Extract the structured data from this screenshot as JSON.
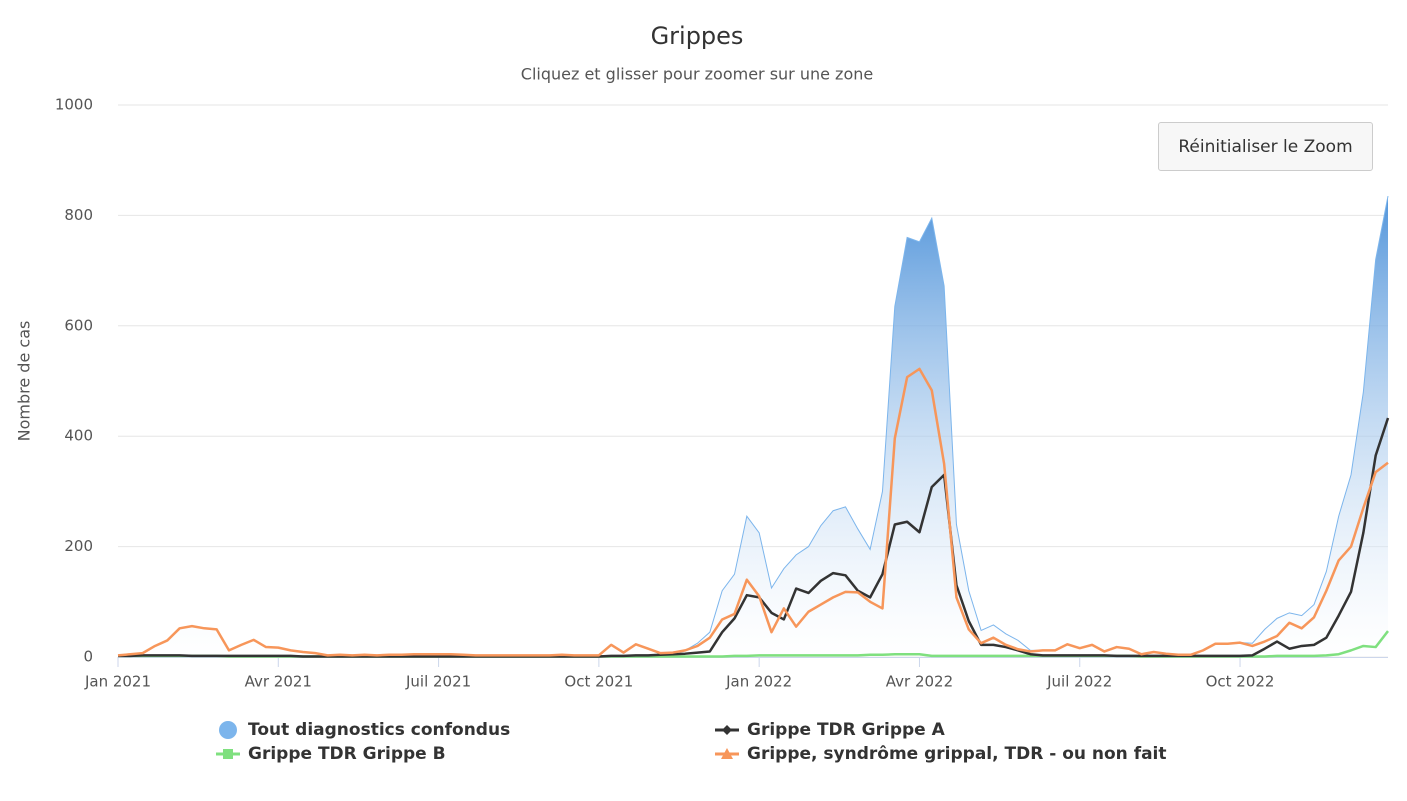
{
  "chart_data": {
    "type": "line",
    "title": "Grippes",
    "subtitle": "Cliquez et glisser pour zoomer sur une zone",
    "y_label": "Nombre de cas",
    "reset_zoom": "Réinitialiser le Zoom",
    "categories": [
      "Jan 2021",
      null,
      null,
      null,
      null,
      null,
      null,
      null,
      null,
      null,
      null,
      null,
      null,
      "Avr 2021",
      null,
      null,
      null,
      null,
      null,
      null,
      null,
      null,
      null,
      null,
      null,
      null,
      "Juil 2021",
      null,
      null,
      null,
      null,
      null,
      null,
      null,
      null,
      null,
      null,
      null,
      null,
      "Oct 2021",
      null,
      null,
      null,
      null,
      null,
      null,
      null,
      null,
      null,
      null,
      null,
      null,
      "Jan 2022",
      null,
      null,
      null,
      null,
      null,
      null,
      null,
      null,
      null,
      null,
      null,
      null,
      "Avr 2022",
      null,
      null,
      null,
      null,
      null,
      null,
      null,
      null,
      null,
      null,
      null,
      null,
      "Juil 2022",
      null,
      null,
      null,
      null,
      null,
      null,
      null,
      null,
      null,
      null,
      null,
      null,
      "Oct 2022",
      null,
      null,
      null,
      null,
      null,
      null,
      null,
      null,
      null,
      null,
      null,
      null
    ],
    "series": [
      {
        "name": "Tout diagnostics confondus",
        "color": "#7cb5ec",
        "area": true,
        "marker": "circle",
        "values": [
          3,
          5,
          7,
          20,
          30,
          52,
          56,
          52,
          50,
          12,
          22,
          31,
          18,
          17,
          12,
          9,
          7,
          3,
          4,
          3,
          4,
          3,
          4,
          4,
          5,
          5,
          5,
          5,
          4,
          3,
          3,
          3,
          3,
          3,
          3,
          3,
          4,
          3,
          3,
          3,
          22,
          8,
          23,
          15,
          7,
          8,
          12,
          25,
          45,
          120,
          150,
          255,
          225,
          125,
          160,
          185,
          200,
          238,
          265,
          272,
          232,
          195,
          300,
          635,
          760,
          752,
          795,
          672,
          240,
          120,
          48,
          58,
          42,
          30,
          12,
          12,
          12,
          23,
          16,
          22,
          10,
          18,
          15,
          5,
          9,
          6,
          4,
          4,
          12,
          24,
          24,
          26,
          25,
          50,
          70,
          80,
          75,
          95,
          155,
          255,
          330,
          480,
          720,
          835
        ]
      },
      {
        "name": "Grippe TDR Grippe A",
        "color": "#333333",
        "marker": "diamond",
        "values": [
          2,
          2,
          3,
          3,
          3,
          3,
          2,
          2,
          2,
          2,
          2,
          2,
          2,
          2,
          2,
          1,
          1,
          1,
          1,
          1,
          1,
          1,
          1,
          1,
          1,
          1,
          1,
          1,
          1,
          1,
          1,
          1,
          1,
          1,
          1,
          1,
          1,
          1,
          1,
          1,
          2,
          2,
          3,
          3,
          4,
          5,
          6,
          8,
          10,
          45,
          70,
          112,
          108,
          80,
          68,
          124,
          116,
          138,
          152,
          148,
          120,
          108,
          150,
          240,
          245,
          226,
          308,
          330,
          130,
          65,
          22,
          22,
          18,
          12,
          5,
          3,
          3,
          3,
          3,
          3,
          3,
          2,
          2,
          2,
          2,
          2,
          2,
          2,
          2,
          2,
          2,
          2,
          3,
          15,
          28,
          15,
          20,
          22,
          35,
          75,
          118,
          225,
          365,
          433
        ]
      },
      {
        "name": "Grippe TDR Grippe B",
        "color": "#7fe07f",
        "marker": "square",
        "values": [
          2,
          2,
          2,
          2,
          2,
          2,
          2,
          2,
          2,
          1,
          1,
          1,
          1,
          1,
          1,
          1,
          1,
          1,
          1,
          1,
          1,
          1,
          1,
          1,
          1,
          1,
          1,
          1,
          1,
          1,
          1,
          1,
          1,
          1,
          1,
          1,
          1,
          1,
          1,
          1,
          1,
          1,
          1,
          1,
          1,
          1,
          1,
          1,
          1,
          1,
          2,
          2,
          3,
          3,
          3,
          3,
          3,
          3,
          3,
          3,
          3,
          4,
          4,
          5,
          5,
          5,
          2,
          2,
          2,
          2,
          2,
          2,
          2,
          2,
          2,
          2,
          2,
          2,
          2,
          2,
          2,
          2,
          2,
          1,
          1,
          1,
          1,
          1,
          1,
          1,
          1,
          1,
          1,
          1,
          2,
          2,
          2,
          2,
          3,
          5,
          12,
          20,
          18,
          47
        ]
      },
      {
        "name": "Grippe, syndrôme grippal, TDR - ou non fait",
        "color": "#f7965a",
        "marker": "triangle",
        "values": [
          3,
          5,
          7,
          20,
          30,
          52,
          56,
          52,
          50,
          12,
          22,
          31,
          18,
          17,
          12,
          9,
          7,
          3,
          4,
          3,
          4,
          3,
          4,
          4,
          5,
          5,
          5,
          5,
          4,
          3,
          3,
          3,
          3,
          3,
          3,
          3,
          4,
          3,
          3,
          3,
          22,
          8,
          23,
          15,
          7,
          8,
          12,
          20,
          35,
          68,
          78,
          140,
          110,
          45,
          88,
          55,
          82,
          95,
          108,
          118,
          117,
          100,
          88,
          396,
          507,
          522,
          483,
          350,
          108,
          50,
          25,
          35,
          22,
          14,
          10,
          12,
          12,
          23,
          16,
          22,
          10,
          18,
          15,
          5,
          9,
          6,
          4,
          4,
          12,
          24,
          24,
          26,
          20,
          28,
          38,
          62,
          52,
          72,
          120,
          175,
          200,
          270,
          335,
          352
        ]
      }
    ],
    "ylim": [
      0,
      1000
    ],
    "yticks": [
      0,
      200,
      400,
      600,
      800,
      1000
    ],
    "grid": true
  }
}
